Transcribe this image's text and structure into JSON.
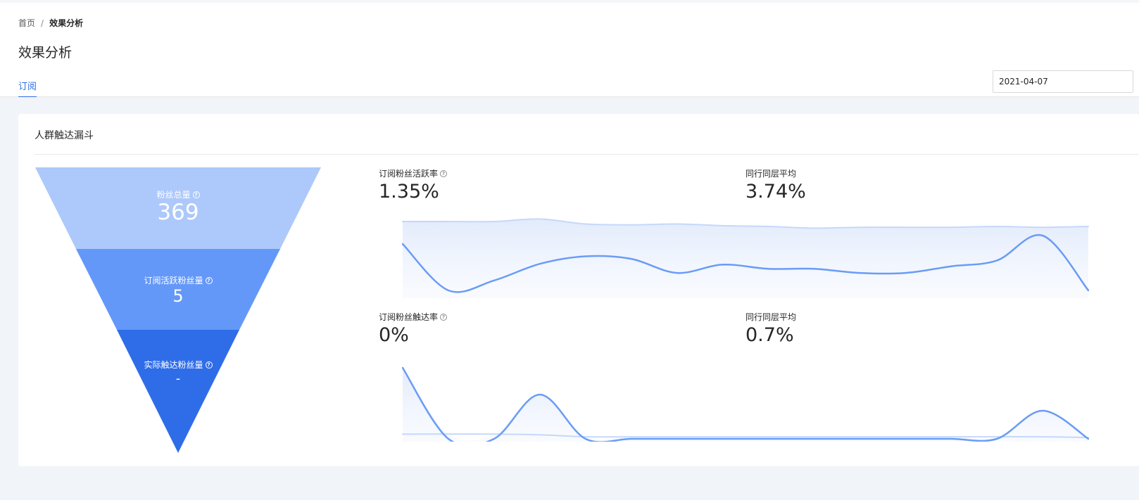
{
  "breadcrumb": {
    "home": "首页",
    "separator": "/",
    "current": "效果分析"
  },
  "page": {
    "title": "效果分析"
  },
  "tabs": [
    {
      "label": "订阅",
      "active": true
    }
  ],
  "date_picker": {
    "value": "2021-04-07"
  },
  "card": {
    "title": "人群触达漏斗"
  },
  "funnel": {
    "levels": [
      {
        "label": "粉丝总量",
        "value": "369",
        "color": "#adc8fb"
      },
      {
        "label": "订阅活跃粉丝量",
        "value": "5",
        "color": "#6498f8"
      },
      {
        "label": "实际触达粉丝量",
        "value": "-",
        "color": "#2f6de8"
      }
    ]
  },
  "metrics": {
    "active_rate": {
      "label": "订阅粉丝活跃率",
      "value": "1.35%"
    },
    "active_peer": {
      "label": "同行同层平均",
      "value": "3.74%"
    },
    "reach_rate": {
      "label": "订阅粉丝触达率",
      "value": "0%"
    },
    "reach_peer": {
      "label": "同行同层平均",
      "value": "0.7%"
    }
  },
  "colors": {
    "accent": "#2f6de8",
    "line_main": "#6a9cf5",
    "line_peer": "#c5d8fb"
  },
  "chart_data": [
    {
      "type": "line",
      "series": [
        {
          "values": [
            3.1,
            0.3,
            0.9,
            1.9,
            2.35,
            2.2,
            1.35,
            1.85,
            1.6,
            1.6,
            1.35,
            1.35,
            1.75,
            2.1,
            3.6,
            0.3
          ]
        },
        {
          "values": [
            4.45,
            4.45,
            4.45,
            4.6,
            4.3,
            4.25,
            4.3,
            4.2,
            4.15,
            4.05,
            4.1,
            4.1,
            4.1,
            4.15,
            4.1,
            4.15
          ]
        }
      ]
    },
    {
      "type": "line",
      "series": [
        {
          "values": [
            5.3,
            0,
            0,
            3.3,
            0,
            0,
            0,
            0,
            0,
            0,
            0,
            0,
            0,
            0,
            2.1,
            0
          ]
        },
        {
          "values": [
            0.35,
            0.35,
            0.35,
            0.3,
            0.15,
            0.15,
            0.15,
            0.15,
            0.15,
            0.15,
            0.15,
            0.15,
            0.15,
            0.15,
            0.15,
            0.1
          ]
        }
      ]
    }
  ]
}
